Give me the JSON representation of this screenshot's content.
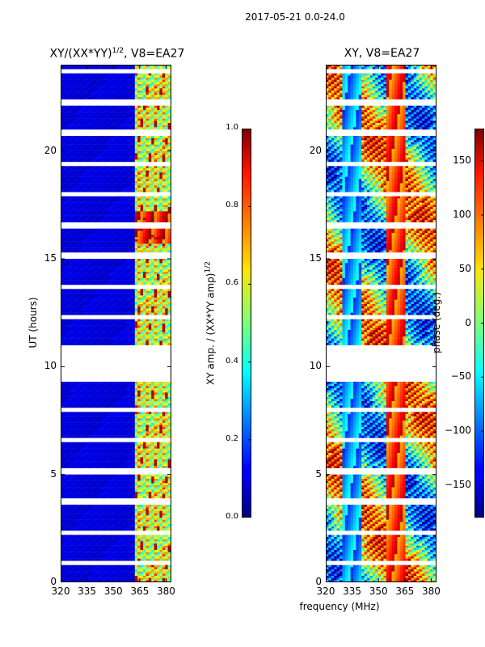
{
  "figure": {
    "suptitle": "2017-05-21 0.0-24.0",
    "common_xlabel": "frequency (MHz)"
  },
  "chart_data": [
    {
      "type": "heatmap",
      "title": "XY/(XX*YY)^1/2, V8=EA27",
      "title_base": "XY/(XX*YY)",
      "title_sup": "1/2",
      "title_rest": ", V8=EA27",
      "xlabel": "frequency (MHz)",
      "ylabel": "UT (hours)",
      "xlim": [
        320,
        383
      ],
      "ylim": [
        0,
        24
      ],
      "xticks": [
        320,
        335,
        350,
        365,
        380
      ],
      "yticks": [
        0,
        5,
        10,
        15,
        20
      ],
      "colorbar": {
        "label": "XY amp. / (XX*YY amp)^1/2",
        "label_base": "XY amp. / (XX*YY amp)",
        "label_sup": "1/2",
        "range": [
          0.0,
          1.0
        ],
        "ticks": [
          "0.0",
          "0.2",
          "0.4",
          "0.6",
          "0.8",
          "1.0"
        ]
      },
      "gap_hours": [
        [
          9.65,
          10.65
        ]
      ],
      "strong_band_mhz": [
        362,
        383
      ],
      "flare_hours": [
        16.7,
        17.0
      ]
    },
    {
      "type": "heatmap",
      "title": "XY, V8=EA27",
      "xlabel": "frequency (MHz)",
      "ylabel": "",
      "xlim": [
        320,
        383
      ],
      "ylim": [
        0,
        24
      ],
      "xticks": [
        320,
        335,
        350,
        365,
        380
      ],
      "yticks": [
        0,
        5,
        10,
        15,
        20
      ],
      "colorbar": {
        "label": "phase (deg.)",
        "range": [
          -180,
          180
        ],
        "ticks": [
          "−150",
          "−100",
          "−50",
          "0",
          "50",
          "100",
          "150"
        ]
      },
      "gap_hours": [
        [
          9.65,
          10.65
        ]
      ]
    }
  ],
  "colors": {
    "colormap": "jet",
    "gap": "#ffffff"
  }
}
